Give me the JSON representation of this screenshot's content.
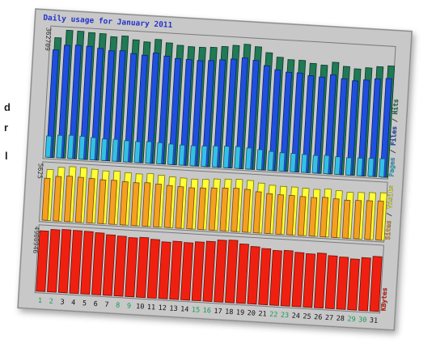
{
  "side_fragments": [
    "d",
    "r",
    "l"
  ],
  "chart_data": {
    "type": "bar",
    "title": "Daily usage for January 2011",
    "categories": [
      "1",
      "2",
      "3",
      "4",
      "5",
      "6",
      "7",
      "8",
      "9",
      "10",
      "11",
      "12",
      "13",
      "14",
      "15",
      "16",
      "17",
      "18",
      "19",
      "20",
      "21",
      "22",
      "23",
      "24",
      "25",
      "26",
      "27",
      "28",
      "29",
      "30",
      "31"
    ],
    "weekend_days": [
      "1",
      "2",
      "8",
      "9",
      "15",
      "16",
      "22",
      "23",
      "29",
      "30"
    ],
    "panels": [
      {
        "id": "pages-files-hits",
        "max_label": "362709",
        "ymax": 362709,
        "side_legend": [
          "Pages",
          "Files",
          "Hits"
        ],
        "series": [
          {
            "name": "Hits",
            "color": "#1f7a55",
            "values": [
              340000,
              362709,
              362000,
              360000,
              359000,
              352000,
              356000,
              347000,
              343000,
              352000,
              344000,
              339000,
              337000,
              337000,
              339000,
              343000,
              348000,
              353000,
              348000,
              333000,
              322000,
              317000,
              317000,
              310000,
              307000,
              317000,
              307000,
              302000,
              307000,
              312000,
              316000
            ]
          },
          {
            "name": "Files",
            "color": "#1f4fe0",
            "values": [
              305000,
              320000,
              322000,
              321000,
              317000,
              312000,
              314000,
              308000,
              305000,
              313000,
              306000,
              301000,
              300000,
              299000,
              301000,
              305000,
              309000,
              314000,
              309000,
              296000,
              286000,
              281000,
              281000,
              275000,
              273000,
              281000,
              272000,
              268000,
              272000,
              277000,
              280000
            ]
          },
          {
            "name": "Pages",
            "color": "#33c0e8",
            "values": [
              60000,
              64000,
              66000,
              65000,
              63000,
              61000,
              62000,
              60000,
              59000,
              61000,
              60000,
              58000,
              57000,
              57000,
              58000,
              60000,
              61000,
              62000,
              60000,
              57000,
              54000,
              52000,
              52000,
              51000,
              50000,
              52000,
              50000,
              49000,
              50000,
              51000,
              52000
            ]
          }
        ]
      },
      {
        "id": "visits-sites",
        "max_label": "5625",
        "ymax": 5625,
        "side_legend": [
          "Sites",
          "Visits"
        ],
        "series": [
          {
            "name": "Visits",
            "color": "#ffff33",
            "values": [
              5200,
              5500,
              5625,
              5600,
              5500,
              5400,
              5450,
              5350,
              5300,
              5400,
              5300,
              5200,
              5150,
              5100,
              5150,
              5250,
              5300,
              5350,
              5300,
              5100,
              4950,
              4900,
              4900,
              4850,
              4800,
              4900,
              4800,
              4700,
              4750,
              4800,
              4850
            ]
          },
          {
            "name": "Sites",
            "color": "#f5a020",
            "values": [
              4300,
              4550,
              4650,
              4600,
              4550,
              4480,
              4500,
              4420,
              4380,
              4450,
              4380,
              4300,
              4250,
              4200,
              4250,
              4320,
              4380,
              4420,
              4380,
              4200,
              4080,
              4030,
              4030,
              3980,
              3950,
              4030,
              3950,
              3880,
              3920,
              3960,
              4000
            ]
          }
        ]
      },
      {
        "id": "kbytes",
        "max_label": "4900946",
        "ymax": 4900946,
        "side_legend": [
          "KBytes"
        ],
        "series": [
          {
            "name": "KBytes",
            "color": "#f02010",
            "values": [
              4700000,
              4850000,
              4900946,
              4880000,
              4860000,
              4800000,
              4700000,
              4650000,
              4580000,
              4650000,
              4550000,
              4400000,
              4500000,
              4450000,
              4560000,
              4650000,
              4800000,
              4850000,
              4600000,
              4450000,
              4350000,
              4250000,
              4300000,
              4200000,
              4150000,
              4250000,
              4100000,
              4050000,
              3950000,
              4100000,
              4250000
            ]
          }
        ]
      }
    ]
  }
}
